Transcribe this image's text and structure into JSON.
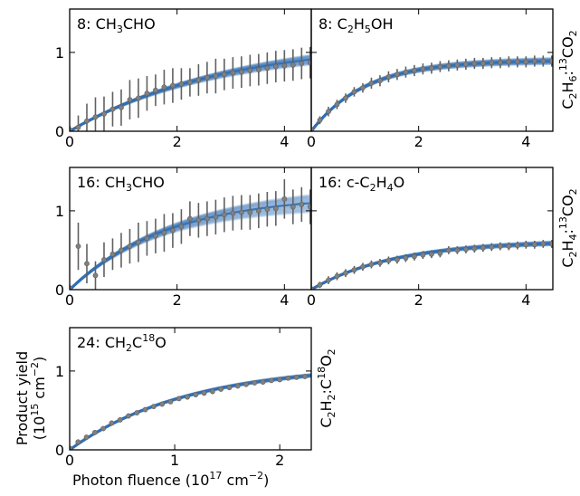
{
  "figure": {
    "xlabel_main": "Photon fluence (10",
    "xlabel_sup": "17",
    "xlabel_unit": " cm",
    "xlabel_unit_sup": "−2",
    "xlabel_close": ")",
    "ylabel_line1": "Product yield",
    "ylabel_line2_main": "(10",
    "ylabel_line2_sup": "15",
    "ylabel_line2_unit": " cm",
    "ylabel_line2_unit_sup": "−2",
    "ylabel_line2_close": ")",
    "colors": {
      "fit_band": "#2e6fb5",
      "data_point": "#808080",
      "error_bar": "#606060",
      "axes": "#000000"
    }
  },
  "row_labels": [
    {
      "parts": [
        {
          "t": "C"
        },
        {
          "t": "2",
          "sub": true
        },
        {
          "t": "H"
        },
        {
          "t": "6",
          "sub": true
        },
        {
          "t": ":"
        },
        {
          "t": "13",
          "sup": true
        },
        {
          "t": "CO"
        },
        {
          "t": "2",
          "sub": true
        }
      ]
    },
    {
      "parts": [
        {
          "t": "C"
        },
        {
          "t": "2",
          "sub": true
        },
        {
          "t": "H"
        },
        {
          "t": "4",
          "sub": true
        },
        {
          "t": ":"
        },
        {
          "t": "13",
          "sup": true
        },
        {
          "t": "CO"
        },
        {
          "t": "2",
          "sub": true
        }
      ]
    },
    {
      "parts": [
        {
          "t": "C"
        },
        {
          "t": "2",
          "sub": true
        },
        {
          "t": "H"
        },
        {
          "t": "2",
          "sub": true
        },
        {
          "t": ":C"
        },
        {
          "t": "18",
          "sup": true
        },
        {
          "t": "O"
        },
        {
          "t": "2",
          "sub": true
        }
      ]
    }
  ],
  "chart_data": [
    {
      "type": "scatter",
      "title_parts": [
        {
          "t": "8: CH"
        },
        {
          "t": "3",
          "sub": true
        },
        {
          "t": "CHO"
        }
      ],
      "xlim": [
        0,
        4.5
      ],
      "ylim": [
        0,
        1.55
      ],
      "xticks": [
        0,
        2,
        4
      ],
      "yticks": [
        0,
        1
      ],
      "show_yticklabels": true,
      "show_xticklabels": true,
      "fit": {
        "amplitude": 1.15,
        "rate": 0.35,
        "spread": 0.1
      },
      "points": [
        {
          "x": 0.0,
          "y": 0.02,
          "err": 0.05
        },
        {
          "x": 0.16,
          "y": 0.05,
          "err": 0.15
        },
        {
          "x": 0.32,
          "y": 0.13,
          "err": 0.22
        },
        {
          "x": 0.48,
          "y": 0.18,
          "err": 0.25
        },
        {
          "x": 0.64,
          "y": 0.22,
          "err": 0.22
        },
        {
          "x": 0.8,
          "y": 0.28,
          "err": 0.22
        },
        {
          "x": 0.96,
          "y": 0.3,
          "err": 0.23
        },
        {
          "x": 1.12,
          "y": 0.4,
          "err": 0.25
        },
        {
          "x": 1.28,
          "y": 0.42,
          "err": 0.25
        },
        {
          "x": 1.44,
          "y": 0.48,
          "err": 0.22
        },
        {
          "x": 1.6,
          "y": 0.52,
          "err": 0.2
        },
        {
          "x": 1.76,
          "y": 0.56,
          "err": 0.22
        },
        {
          "x": 1.92,
          "y": 0.58,
          "err": 0.22
        },
        {
          "x": 2.08,
          "y": 0.6,
          "err": 0.2
        },
        {
          "x": 2.24,
          "y": 0.62,
          "err": 0.18
        },
        {
          "x": 2.4,
          "y": 0.65,
          "err": 0.2
        },
        {
          "x": 2.56,
          "y": 0.68,
          "err": 0.2
        },
        {
          "x": 2.72,
          "y": 0.7,
          "err": 0.22
        },
        {
          "x": 2.88,
          "y": 0.72,
          "err": 0.2
        },
        {
          "x": 3.04,
          "y": 0.74,
          "err": 0.2
        },
        {
          "x": 3.2,
          "y": 0.75,
          "err": 0.2
        },
        {
          "x": 3.36,
          "y": 0.77,
          "err": 0.2
        },
        {
          "x": 3.52,
          "y": 0.78,
          "err": 0.2
        },
        {
          "x": 3.68,
          "y": 0.8,
          "err": 0.2
        },
        {
          "x": 3.84,
          "y": 0.82,
          "err": 0.2
        },
        {
          "x": 4.0,
          "y": 0.83,
          "err": 0.2
        },
        {
          "x": 4.16,
          "y": 0.84,
          "err": 0.2
        },
        {
          "x": 4.32,
          "y": 0.86,
          "err": 0.2
        },
        {
          "x": 4.48,
          "y": 0.87,
          "err": 0.2
        }
      ]
    },
    {
      "type": "scatter",
      "title_parts": [
        {
          "t": "8: C"
        },
        {
          "t": "2",
          "sub": true
        },
        {
          "t": "H"
        },
        {
          "t": "5",
          "sub": true
        },
        {
          "t": "OH"
        }
      ],
      "xlim": [
        0,
        4.5
      ],
      "ylim": [
        0,
        1.55
      ],
      "xticks": [
        0,
        2,
        4
      ],
      "yticks": [
        0,
        1
      ],
      "show_yticklabels": false,
      "show_xticklabels": true,
      "fit": {
        "amplitude": 0.9,
        "rate": 1.0,
        "spread": 0.04
      },
      "points": [
        {
          "x": 0.0,
          "y": 0.02,
          "err": 0.03
        },
        {
          "x": 0.16,
          "y": 0.14,
          "err": 0.05
        },
        {
          "x": 0.32,
          "y": 0.25,
          "err": 0.06
        },
        {
          "x": 0.48,
          "y": 0.34,
          "err": 0.06
        },
        {
          "x": 0.64,
          "y": 0.42,
          "err": 0.06
        },
        {
          "x": 0.8,
          "y": 0.5,
          "err": 0.06
        },
        {
          "x": 0.96,
          "y": 0.55,
          "err": 0.06
        },
        {
          "x": 1.12,
          "y": 0.61,
          "err": 0.07
        },
        {
          "x": 1.28,
          "y": 0.64,
          "err": 0.07
        },
        {
          "x": 1.44,
          "y": 0.69,
          "err": 0.07
        },
        {
          "x": 1.6,
          "y": 0.72,
          "err": 0.07
        },
        {
          "x": 1.76,
          "y": 0.75,
          "err": 0.07
        },
        {
          "x": 1.92,
          "y": 0.77,
          "err": 0.07
        },
        {
          "x": 2.08,
          "y": 0.79,
          "err": 0.07
        },
        {
          "x": 2.24,
          "y": 0.8,
          "err": 0.07
        },
        {
          "x": 2.4,
          "y": 0.82,
          "err": 0.07
        },
        {
          "x": 2.56,
          "y": 0.83,
          "err": 0.07
        },
        {
          "x": 2.72,
          "y": 0.84,
          "err": 0.07
        },
        {
          "x": 2.88,
          "y": 0.85,
          "err": 0.07
        },
        {
          "x": 3.04,
          "y": 0.86,
          "err": 0.07
        },
        {
          "x": 3.2,
          "y": 0.86,
          "err": 0.07
        },
        {
          "x": 3.36,
          "y": 0.87,
          "err": 0.07
        },
        {
          "x": 3.52,
          "y": 0.87,
          "err": 0.07
        },
        {
          "x": 3.68,
          "y": 0.88,
          "err": 0.07
        },
        {
          "x": 3.84,
          "y": 0.88,
          "err": 0.07
        },
        {
          "x": 4.0,
          "y": 0.88,
          "err": 0.07
        },
        {
          "x": 4.16,
          "y": 0.89,
          "err": 0.07
        },
        {
          "x": 4.32,
          "y": 0.89,
          "err": 0.07
        },
        {
          "x": 4.48,
          "y": 0.89,
          "err": 0.07
        }
      ]
    },
    {
      "type": "scatter",
      "title_parts": [
        {
          "t": "16: CH"
        },
        {
          "t": "3",
          "sub": true
        },
        {
          "t": "CHO"
        }
      ],
      "xlim": [
        0,
        4.5
      ],
      "ylim": [
        0,
        1.55
      ],
      "xticks": [
        0,
        2,
        4
      ],
      "yticks": [
        0,
        1
      ],
      "show_yticklabels": true,
      "show_xticklabels": true,
      "fit": {
        "amplitude": 1.2,
        "rate": 0.55,
        "spread": 0.12
      },
      "points": [
        {
          "x": 0.0,
          "y": 0.02,
          "err": 0.05
        },
        {
          "x": 0.16,
          "y": 0.55,
          "err": 0.3
        },
        {
          "x": 0.32,
          "y": 0.33,
          "err": 0.25
        },
        {
          "x": 0.48,
          "y": 0.18,
          "err": 0.18
        },
        {
          "x": 0.64,
          "y": 0.38,
          "err": 0.22
        },
        {
          "x": 0.8,
          "y": 0.45,
          "err": 0.2
        },
        {
          "x": 0.96,
          "y": 0.5,
          "err": 0.22
        },
        {
          "x": 1.12,
          "y": 0.55,
          "err": 0.22
        },
        {
          "x": 1.28,
          "y": 0.6,
          "err": 0.25
        },
        {
          "x": 1.44,
          "y": 0.65,
          "err": 0.22
        },
        {
          "x": 1.6,
          "y": 0.68,
          "err": 0.22
        },
        {
          "x": 1.76,
          "y": 0.72,
          "err": 0.24
        },
        {
          "x": 1.92,
          "y": 0.75,
          "err": 0.22
        },
        {
          "x": 2.08,
          "y": 0.8,
          "err": 0.22
        },
        {
          "x": 2.24,
          "y": 0.9,
          "err": 0.22
        },
        {
          "x": 2.4,
          "y": 0.88,
          "err": 0.22
        },
        {
          "x": 2.56,
          "y": 0.9,
          "err": 0.22
        },
        {
          "x": 2.72,
          "y": 0.92,
          "err": 0.22
        },
        {
          "x": 2.88,
          "y": 0.95,
          "err": 0.22
        },
        {
          "x": 3.04,
          "y": 0.97,
          "err": 0.22
        },
        {
          "x": 3.2,
          "y": 0.98,
          "err": 0.22
        },
        {
          "x": 3.36,
          "y": 0.98,
          "err": 0.22
        },
        {
          "x": 3.52,
          "y": 1.0,
          "err": 0.22
        },
        {
          "x": 3.68,
          "y": 1.02,
          "err": 0.22
        },
        {
          "x": 3.84,
          "y": 1.03,
          "err": 0.22
        },
        {
          "x": 4.0,
          "y": 1.15,
          "err": 0.25
        },
        {
          "x": 4.16,
          "y": 1.05,
          "err": 0.22
        },
        {
          "x": 4.32,
          "y": 1.08,
          "err": 0.22
        },
        {
          "x": 4.48,
          "y": 1.05,
          "err": 0.22
        }
      ]
    },
    {
      "type": "scatter",
      "title_parts": [
        {
          "t": "16: c-C"
        },
        {
          "t": "2",
          "sub": true
        },
        {
          "t": "H"
        },
        {
          "t": "4",
          "sub": true
        },
        {
          "t": "O"
        }
      ],
      "xlim": [
        0,
        4.5
      ],
      "ylim": [
        0,
        1.55
      ],
      "xticks": [
        0,
        2,
        4
      ],
      "yticks": [
        0,
        1
      ],
      "show_yticklabels": false,
      "show_xticklabels": true,
      "fit": {
        "amplitude": 0.62,
        "rate": 0.65,
        "spread": 0.04
      },
      "points": [
        {
          "x": 0.0,
          "y": 0.01,
          "err": 0.03
        },
        {
          "x": 0.16,
          "y": 0.06,
          "err": 0.04
        },
        {
          "x": 0.32,
          "y": 0.12,
          "err": 0.05
        },
        {
          "x": 0.48,
          "y": 0.17,
          "err": 0.05
        },
        {
          "x": 0.64,
          "y": 0.21,
          "err": 0.05
        },
        {
          "x": 0.8,
          "y": 0.25,
          "err": 0.05
        },
        {
          "x": 0.96,
          "y": 0.29,
          "err": 0.05
        },
        {
          "x": 1.12,
          "y": 0.32,
          "err": 0.05
        },
        {
          "x": 1.28,
          "y": 0.34,
          "err": 0.05
        },
        {
          "x": 1.44,
          "y": 0.37,
          "err": 0.05
        },
        {
          "x": 1.6,
          "y": 0.38,
          "err": 0.05
        },
        {
          "x": 1.76,
          "y": 0.4,
          "err": 0.05
        },
        {
          "x": 1.92,
          "y": 0.42,
          "err": 0.05
        },
        {
          "x": 2.08,
          "y": 0.44,
          "err": 0.05
        },
        {
          "x": 2.24,
          "y": 0.45,
          "err": 0.05
        },
        {
          "x": 2.4,
          "y": 0.46,
          "err": 0.05
        },
        {
          "x": 2.56,
          "y": 0.5,
          "err": 0.05
        },
        {
          "x": 2.72,
          "y": 0.5,
          "err": 0.05
        },
        {
          "x": 2.88,
          "y": 0.51,
          "err": 0.05
        },
        {
          "x": 3.04,
          "y": 0.52,
          "err": 0.05
        },
        {
          "x": 3.2,
          "y": 0.53,
          "err": 0.05
        },
        {
          "x": 3.36,
          "y": 0.54,
          "err": 0.05
        },
        {
          "x": 3.52,
          "y": 0.55,
          "err": 0.05
        },
        {
          "x": 3.68,
          "y": 0.55,
          "err": 0.05
        },
        {
          "x": 3.84,
          "y": 0.56,
          "err": 0.05
        },
        {
          "x": 4.0,
          "y": 0.57,
          "err": 0.05
        },
        {
          "x": 4.16,
          "y": 0.57,
          "err": 0.05
        },
        {
          "x": 4.32,
          "y": 0.58,
          "err": 0.05
        },
        {
          "x": 4.48,
          "y": 0.58,
          "err": 0.05
        }
      ]
    },
    {
      "type": "scatter",
      "title_parts": [
        {
          "t": "24: CH"
        },
        {
          "t": "2",
          "sub": true
        },
        {
          "t": "C"
        },
        {
          "t": "18",
          "sup": true
        },
        {
          "t": "O"
        }
      ],
      "xlim": [
        0,
        2.3
      ],
      "ylim": [
        0,
        1.55
      ],
      "xticks": [
        0,
        1,
        2
      ],
      "yticks": [
        0,
        1
      ],
      "show_yticklabels": true,
      "show_xticklabels": true,
      "fit": {
        "amplitude": 1.08,
        "rate": 0.9,
        "spread": 0.02
      },
      "points": [
        {
          "x": 0.0,
          "y": 0.02,
          "err": 0.03
        },
        {
          "x": 0.08,
          "y": 0.1,
          "err": 0.03
        },
        {
          "x": 0.16,
          "y": 0.16,
          "err": 0.03
        },
        {
          "x": 0.24,
          "y": 0.22,
          "err": 0.03
        },
        {
          "x": 0.32,
          "y": 0.27,
          "err": 0.03
        },
        {
          "x": 0.4,
          "y": 0.34,
          "err": 0.03
        },
        {
          "x": 0.48,
          "y": 0.38,
          "err": 0.03
        },
        {
          "x": 0.56,
          "y": 0.43,
          "err": 0.03
        },
        {
          "x": 0.64,
          "y": 0.47,
          "err": 0.03
        },
        {
          "x": 0.72,
          "y": 0.51,
          "err": 0.03
        },
        {
          "x": 0.8,
          "y": 0.55,
          "err": 0.03
        },
        {
          "x": 0.88,
          "y": 0.58,
          "err": 0.03
        },
        {
          "x": 0.96,
          "y": 0.61,
          "err": 0.03
        },
        {
          "x": 1.04,
          "y": 0.65,
          "err": 0.03
        },
        {
          "x": 1.12,
          "y": 0.67,
          "err": 0.03
        },
        {
          "x": 1.2,
          "y": 0.7,
          "err": 0.03
        },
        {
          "x": 1.28,
          "y": 0.72,
          "err": 0.03
        },
        {
          "x": 1.36,
          "y": 0.74,
          "err": 0.03
        },
        {
          "x": 1.44,
          "y": 0.77,
          "err": 0.03
        },
        {
          "x": 1.52,
          "y": 0.79,
          "err": 0.03
        },
        {
          "x": 1.6,
          "y": 0.81,
          "err": 0.03
        },
        {
          "x": 1.68,
          "y": 0.83,
          "err": 0.03
        },
        {
          "x": 1.76,
          "y": 0.85,
          "err": 0.03
        },
        {
          "x": 1.84,
          "y": 0.86,
          "err": 0.03
        },
        {
          "x": 1.92,
          "y": 0.88,
          "err": 0.03
        },
        {
          "x": 2.0,
          "y": 0.89,
          "err": 0.03
        },
        {
          "x": 2.08,
          "y": 0.91,
          "err": 0.03
        },
        {
          "x": 2.16,
          "y": 0.92,
          "err": 0.03
        },
        {
          "x": 2.24,
          "y": 0.93,
          "err": 0.03
        }
      ]
    }
  ]
}
